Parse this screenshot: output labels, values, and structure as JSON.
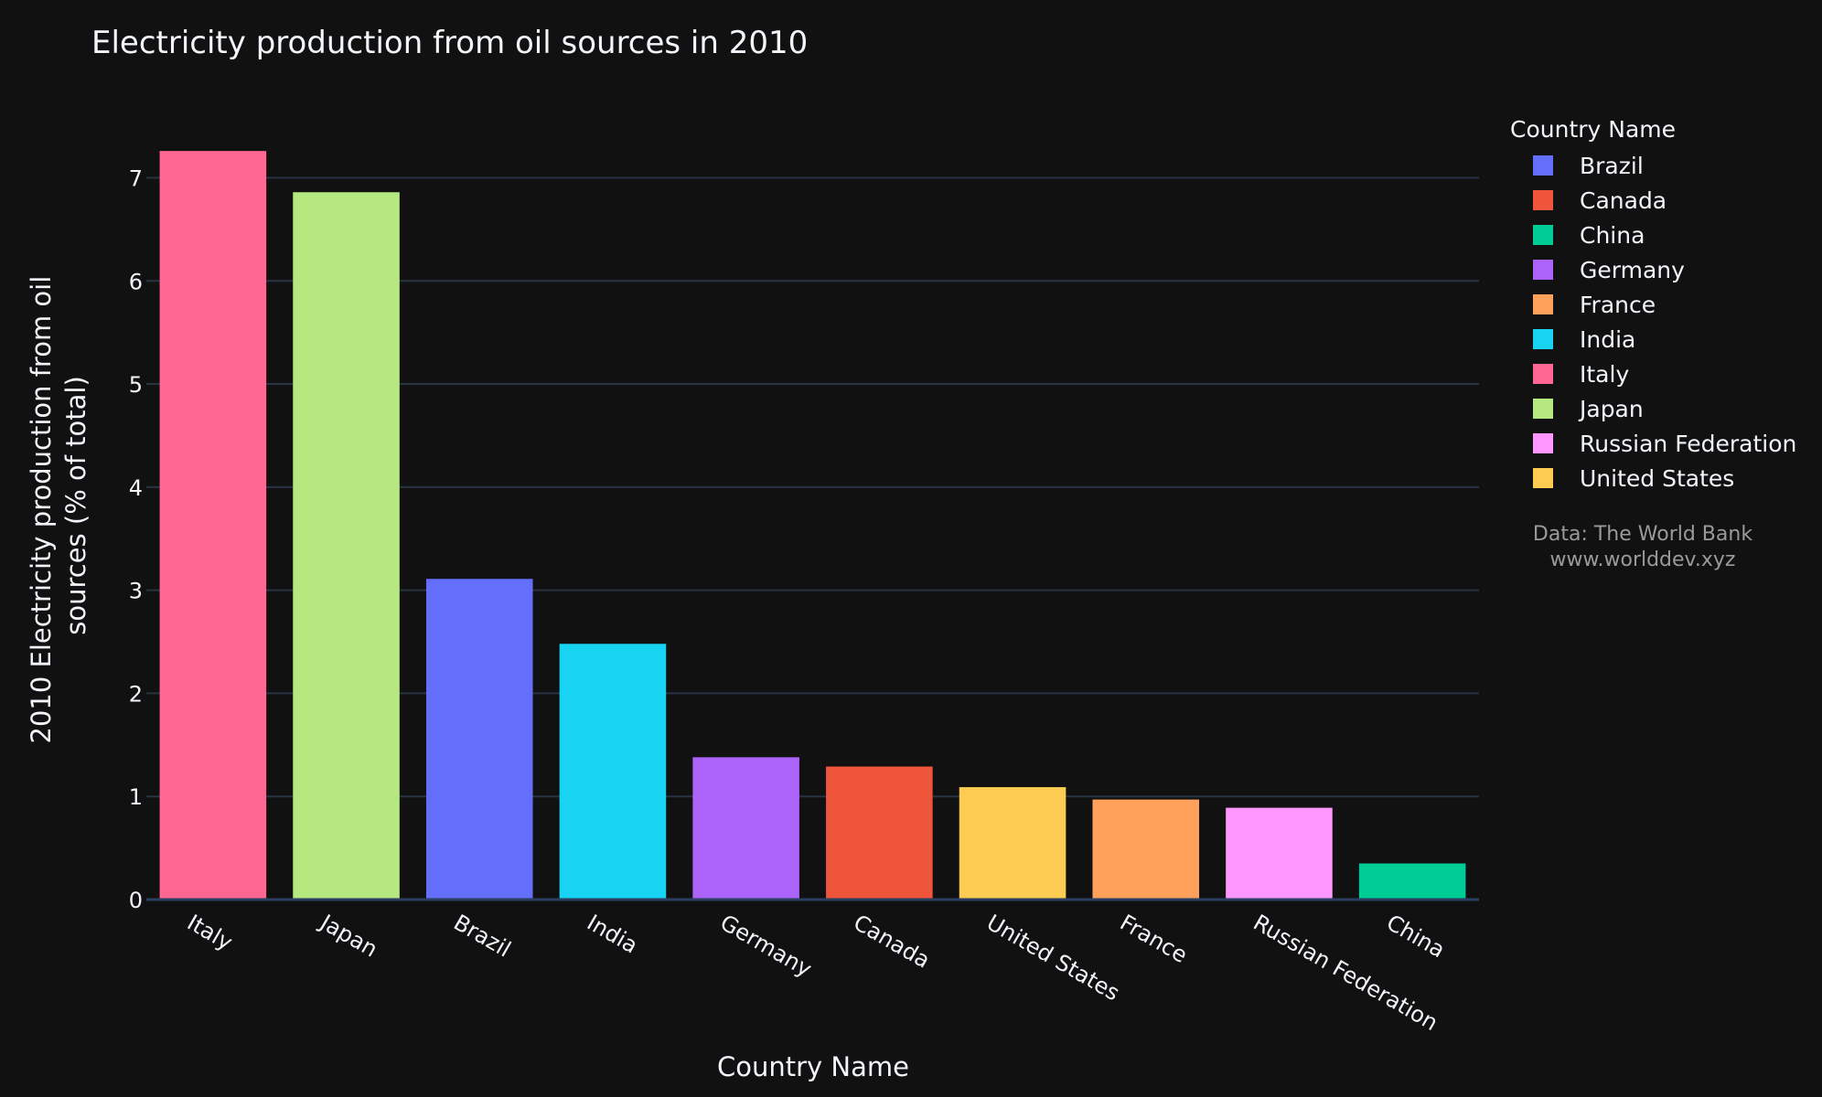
{
  "chart_data": {
    "type": "bar",
    "title": "Electricity production from oil sources in 2010",
    "xlabel": "Country Name",
    "ylabel_lines": [
      "2010 Electricity production from oil",
      "sources (% of total)"
    ],
    "ylim": [
      0,
      7.35
    ],
    "yticks": [
      0,
      1,
      2,
      3,
      4,
      5,
      6,
      7
    ],
    "grid": true,
    "categories": [
      "Italy",
      "Japan",
      "Brazil",
      "India",
      "Germany",
      "Canada",
      "United States",
      "France",
      "Russian Federation",
      "China"
    ],
    "values": [
      7.26,
      6.86,
      3.11,
      2.48,
      1.38,
      1.29,
      1.09,
      0.97,
      0.89,
      0.35
    ],
    "colors": {
      "Brazil": "#636efa",
      "Canada": "#ef553b",
      "China": "#00cc96",
      "Germany": "#ab63fa",
      "France": "#ffa15a",
      "India": "#19d3f3",
      "Italy": "#ff6692",
      "Japan": "#b6e880",
      "Russian Federation": "#ff97ff",
      "United States": "#fecb52"
    },
    "legend": {
      "title": "Country Name",
      "placement": "right",
      "items": [
        "Brazil",
        "Canada",
        "China",
        "Germany",
        "France",
        "India",
        "Italy",
        "Japan",
        "Russian Federation",
        "United States"
      ]
    },
    "annotation": [
      "Data: The World Bank",
      "www.worlddev.xyz"
    ]
  }
}
